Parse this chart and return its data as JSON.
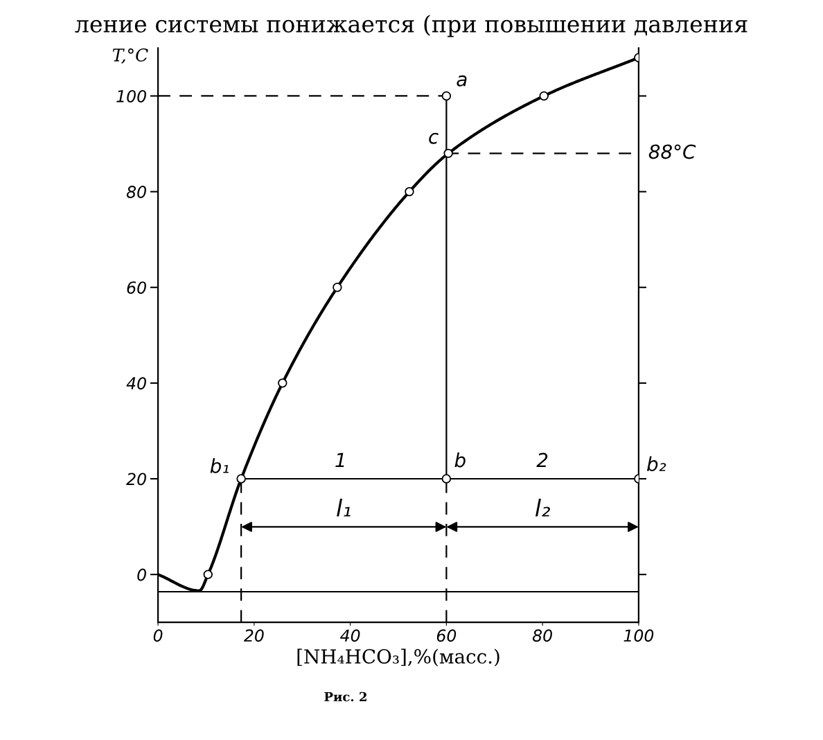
{
  "chart_data": {
    "type": "line",
    "xlabel": "[NH₄HCO₃],%(масс.)",
    "ylabel": "T,°C",
    "xlim": [
      0,
      100
    ],
    "xticks": [
      0,
      20,
      40,
      60,
      80,
      100
    ],
    "ylim": [
      -10,
      110
    ],
    "yticks": [
      0,
      20,
      40,
      60,
      80,
      100
    ],
    "grid": false,
    "series": [
      {
        "color": "#000000",
        "line_style": "solid",
        "marker": "none",
        "x": [
          0,
          8.6,
          10.4,
          17.3,
          25.9,
          37.3,
          52.3,
          60.4,
          80.3,
          100
        ],
        "values": [
          0,
          -3.4,
          0,
          20,
          40,
          60,
          80,
          88,
          100,
          108
        ]
      },
      {
        "type": "scatter",
        "color": "#000000",
        "marker": "circle",
        "x": [
          10.4,
          17.3,
          25.9,
          37.3,
          52.3,
          60.4,
          80.3,
          100,
          60,
          60,
          100
        ],
        "values": [
          0,
          20,
          40,
          60,
          80,
          88,
          100,
          108,
          100,
          20,
          20
        ]
      },
      {
        "color": "#000000",
        "line_style": "solid",
        "marker": "none",
        "x": [
          0,
          100
        ],
        "values": [
          -3.6,
          -3.6
        ]
      },
      {
        "color": "#000000",
        "line_style": "solid",
        "marker": "none",
        "x": [
          17.3,
          100
        ],
        "values": [
          20,
          20
        ]
      },
      {
        "color": "#000000",
        "line_style": "solid",
        "marker": "none",
        "x": [
          60,
          60
        ],
        "values": [
          20,
          100
        ]
      },
      {
        "color": "#000000",
        "line_style": "dashed",
        "marker": "none",
        "x": [
          0,
          60
        ],
        "values": [
          100,
          100
        ]
      },
      {
        "color": "#000000",
        "line_style": "dashed",
        "marker": "none",
        "x": [
          60,
          100
        ],
        "values": [
          88,
          88
        ]
      },
      {
        "color": "#000000",
        "line_style": "dashed",
        "marker": "none",
        "x": [
          17.3,
          17.3
        ],
        "values": [
          -10,
          20
        ]
      },
      {
        "color": "#000000",
        "line_style": "dashed",
        "marker": "none",
        "x": [
          60,
          60
        ],
        "values": [
          -10,
          20
        ]
      }
    ],
    "annotations": [
      "ление системы понижается (при повышении давления",
      {
        "text": "a",
        "x": 60,
        "y": 100
      },
      {
        "text": "c",
        "x": 60.4,
        "y": 88
      },
      {
        "text": "88°C",
        "x": 100,
        "y": 88
      },
      {
        "text": "b₁",
        "x": 17.3,
        "y": 20
      },
      {
        "text": "b",
        "x": 60,
        "y": 20
      },
      {
        "text": "b₂",
        "x": 100,
        "y": 20
      },
      {
        "text": "1",
        "x": 38,
        "y": 20
      },
      {
        "text": "2",
        "x": 80,
        "y": 20
      },
      "l₁",
      "l₂",
      "Рис. 2"
    ]
  }
}
